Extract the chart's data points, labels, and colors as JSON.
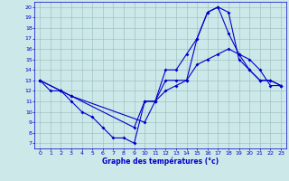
{
  "line1_x": [
    0,
    1,
    2,
    3,
    4,
    5,
    6,
    7,
    8,
    9,
    10,
    11,
    12,
    13,
    14,
    15,
    16,
    17,
    18,
    19,
    20,
    21,
    22,
    23
  ],
  "line1_y": [
    13,
    12,
    12,
    11,
    10,
    9.5,
    8.5,
    7.5,
    7.5,
    7,
    11,
    11,
    13,
    13,
    13,
    17,
    19.5,
    20,
    19.5,
    15,
    14,
    13,
    13,
    12.5
  ],
  "line2_x": [
    0,
    2,
    3,
    10,
    11,
    12,
    13,
    14,
    15,
    16,
    17,
    18,
    19,
    20,
    21,
    22,
    23
  ],
  "line2_y": [
    13,
    12,
    11.5,
    9,
    11,
    14,
    14,
    15.5,
    17,
    19.5,
    20,
    17.5,
    15.5,
    14,
    13,
    13,
    12.5
  ],
  "line3_x": [
    0,
    2,
    3,
    9,
    10,
    11,
    12,
    13,
    14,
    15,
    16,
    17,
    18,
    19,
    20,
    21,
    22,
    23
  ],
  "line3_y": [
    13,
    12,
    11.5,
    8.5,
    11,
    11,
    12,
    12.5,
    13,
    14.5,
    15,
    15.5,
    16,
    15.5,
    15,
    14,
    12.5,
    12.5
  ],
  "bg_color": "#cce8e8",
  "line_color": "#0000cc",
  "grid_color": "#99bbbb",
  "xlabel": "Graphe des températures (°c)",
  "xlabel_color": "#0000cc",
  "tick_color": "#0000cc",
  "xlim": [
    -0.5,
    23.5
  ],
  "ylim": [
    6.5,
    20.5
  ],
  "yticks": [
    7,
    8,
    9,
    10,
    11,
    12,
    13,
    14,
    15,
    16,
    17,
    18,
    19,
    20
  ],
  "xticks": [
    0,
    1,
    2,
    3,
    4,
    5,
    6,
    7,
    8,
    9,
    10,
    11,
    12,
    13,
    14,
    15,
    16,
    17,
    18,
    19,
    20,
    21,
    22,
    23
  ],
  "marker_size": 2.0,
  "linewidth": 0.8
}
